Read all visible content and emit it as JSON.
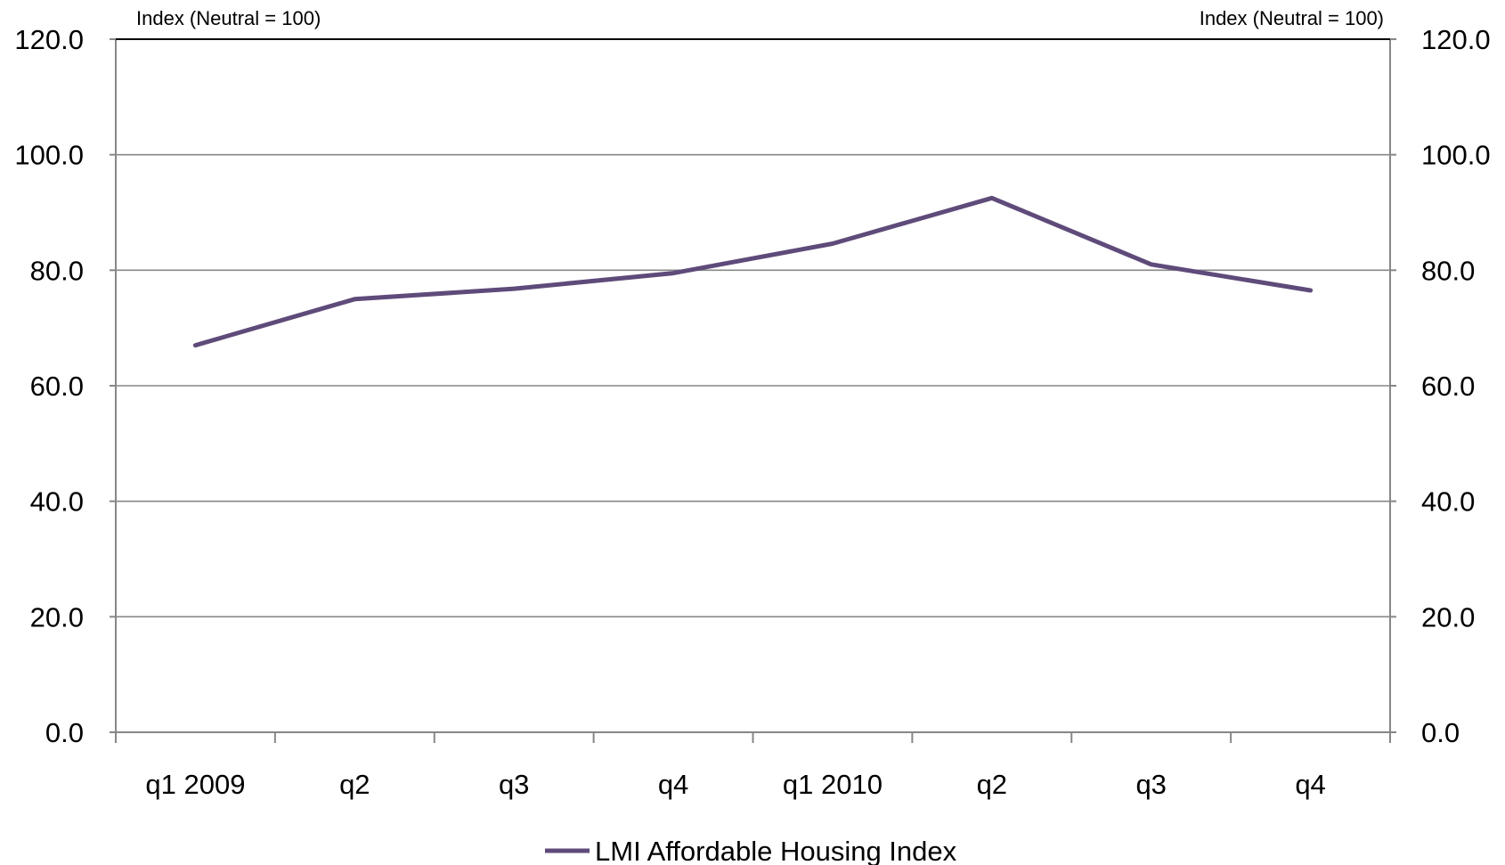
{
  "chart_data": {
    "type": "line",
    "categories": [
      "q1 2009",
      "q2",
      "q3",
      "q4",
      "q1 2010",
      "q2",
      "q3",
      "q4"
    ],
    "series": [
      {
        "name": "LMI Affordable Housing Index",
        "color": "#5f4b7a",
        "values": [
          67.0,
          75.0,
          76.8,
          79.5,
          84.6,
          92.5,
          81.0,
          76.5
        ]
      }
    ],
    "y_left_title": "Index (Neutral = 100)",
    "y_right_title": "Index (Neutral = 100)",
    "ylim": [
      0,
      120
    ],
    "y_ticks": [
      "0.0",
      "20.0",
      "40.0",
      "60.0",
      "80.0",
      "100.0",
      "120.0"
    ],
    "grid": true,
    "legend_position": "bottom-center",
    "colors": {
      "gridline": "#878787",
      "axis": "#878787",
      "text": "#000000"
    }
  }
}
